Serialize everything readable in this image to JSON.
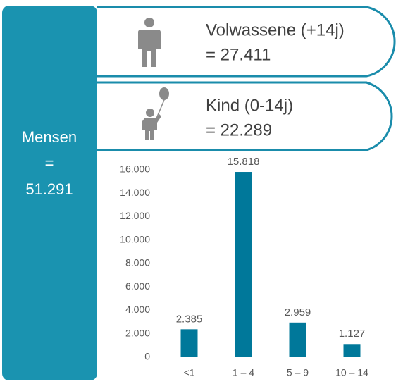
{
  "panel": {
    "label": "Mensen",
    "equals": "=",
    "total": "51.291"
  },
  "groups": [
    {
      "label": "Volwassene (+14j)",
      "value": "= 27.411"
    },
    {
      "label": "Kind (0-14j)",
      "value": "= 22.289"
    }
  ],
  "chart_data": {
    "type": "bar",
    "categories": [
      "<1",
      "1 – 4",
      "5 – 9",
      "10 – 14"
    ],
    "values": [
      2385,
      15818,
      2959,
      1127
    ],
    "value_labels": [
      "2.385",
      "15.818",
      "2.959",
      "1.127"
    ],
    "color": "#00789a",
    "ylim": [
      0,
      16000
    ],
    "yticks": [
      0,
      {
        "value": 2000,
        "label": "2.000"
      },
      {
        "value": 4000,
        "label": "4.000"
      },
      {
        "value": 6000,
        "label": "6.000"
      },
      {
        "value": 8000,
        "label": "8.000"
      },
      {
        "value": 10000,
        "label": "10.000"
      },
      {
        "value": 12000,
        "label": "12.000"
      },
      {
        "value": 14000,
        "label": "14.000"
      },
      {
        "value": 16000,
        "label": "16.000"
      }
    ],
    "grid": false
  }
}
